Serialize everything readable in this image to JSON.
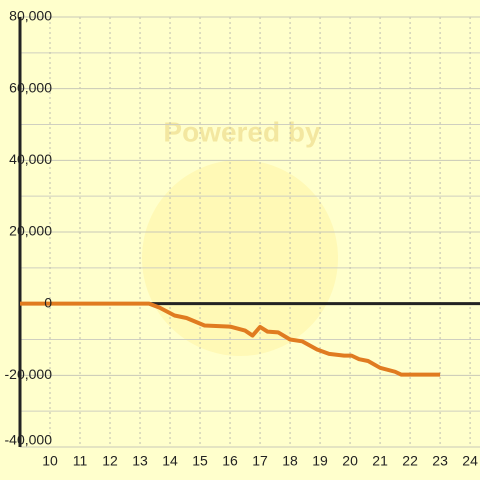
{
  "chart_data": {
    "type": "line",
    "watermark": "Powered by",
    "x": [
      9,
      13.3,
      13.65,
      14.15,
      14.55,
      15.15,
      16.0,
      16.5,
      16.75,
      17.0,
      17.25,
      17.6,
      18.0,
      18.4,
      18.9,
      19.3,
      19.8,
      20.05,
      20.3,
      20.6,
      21.0,
      21.5,
      21.7,
      23.0
    ],
    "series": [
      {
        "color": "#e07b20",
        "values": [
          0,
          0,
          -1100,
          -3300,
          -4000,
          -6100,
          -6400,
          -7500,
          -8900,
          -6500,
          -7800,
          -8000,
          -10000,
          -10500,
          -12800,
          -14000,
          -14500,
          -14500,
          -15500,
          -16000,
          -17900,
          -19000,
          -19800,
          -19800
        ]
      }
    ],
    "xlim": [
      9,
      24.33
    ],
    "xticks": [
      10,
      11,
      12,
      13,
      14,
      15,
      16,
      17,
      18,
      19,
      20,
      21,
      22,
      23,
      24
    ],
    "ylim": [
      -40000,
      80000
    ],
    "yticks": [
      {
        "value": -40000,
        "label": "-40,000"
      },
      {
        "value": -20000,
        "label": "-20,000"
      },
      0,
      {
        "value": 20000,
        "label": "20,000"
      },
      {
        "value": 40000,
        "label": "40,000"
      },
      {
        "value": 60000,
        "label": "60,000"
      },
      {
        "value": 80000,
        "label": "80,000"
      }
    ],
    "minor_yticks": [
      -30000,
      -10000,
      10000,
      30000,
      50000,
      70000
    ],
    "grid": true
  }
}
